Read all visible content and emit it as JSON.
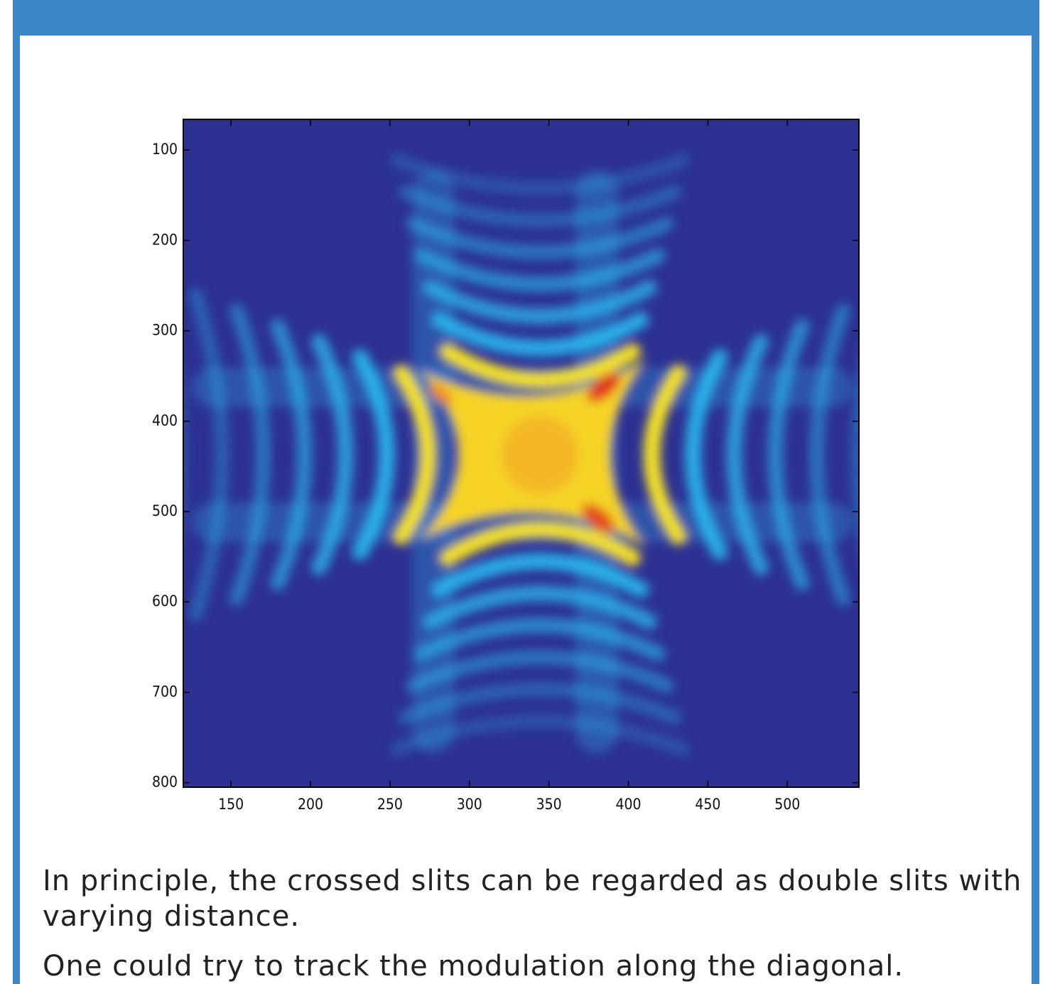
{
  "chart_data": {
    "type": "image",
    "xlim": [
      120,
      545
    ],
    "ylim": [
      66,
      805
    ],
    "y_reversed": true,
    "xticks": [
      150,
      200,
      250,
      300,
      350,
      400,
      450,
      500
    ],
    "yticks": [
      100,
      200,
      300,
      400,
      500,
      600,
      700,
      800
    ]
  },
  "paragraphs": [
    "In principle, the crossed slits can be regarded as double slits with varying distance.",
    "One could try to track the modulation along the diagonal."
  ]
}
